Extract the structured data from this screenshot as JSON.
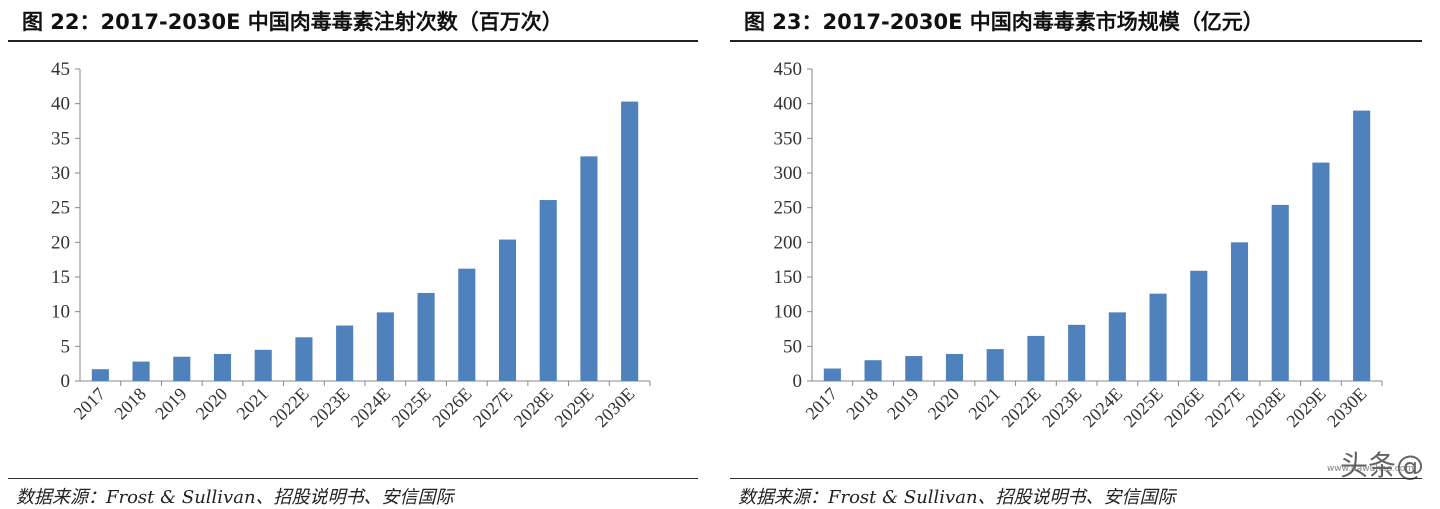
{
  "charts": [
    {
      "figure_title": "图 22：2017-2030E 中国肉毒毒素注射次数（百万次）",
      "source": "数据来源：Frost & Sullivan、招股说明书、安信国际",
      "chart_data": {
        "type": "bar",
        "title": "图 22：2017-2030E 中国肉毒毒素注射次数（百万次）",
        "categories": [
          "2017",
          "2018",
          "2019",
          "2020",
          "2021",
          "2022E",
          "2023E",
          "2024E",
          "2025E",
          "2026E",
          "2027E",
          "2028E",
          "2029E",
          "2030E"
        ],
        "values": [
          1.7,
          2.8,
          3.5,
          3.9,
          4.5,
          6.3,
          8.0,
          9.9,
          12.7,
          16.2,
          20.4,
          26.1,
          32.4,
          40.3
        ],
        "ylim": [
          0,
          45
        ],
        "yticks": [
          "0",
          "5",
          "10",
          "15",
          "20",
          "25",
          "30",
          "35",
          "40",
          "45"
        ],
        "color": "#4f81bd",
        "grid": false
      }
    },
    {
      "figure_title": "图 23：2017-2030E 中国肉毒毒素市场规模（亿元）",
      "source": "数据来源：Frost & Sullivan、招股说明书、安信国际",
      "chart_data": {
        "type": "bar",
        "title": "图 23：2017-2030E 中国肉毒毒素市场规模（亿元）",
        "categories": [
          "2017",
          "2018",
          "2019",
          "2020",
          "2021",
          "2022E",
          "2023E",
          "2024E",
          "2025E",
          "2026E",
          "2027E",
          "2028E",
          "2029E",
          "2030E"
        ],
        "values": [
          18,
          30,
          36,
          39,
          46,
          65,
          81,
          99,
          126,
          159,
          200,
          254,
          315,
          390
        ],
        "ylim": [
          0,
          450
        ],
        "yticks": [
          "0",
          "50",
          "100",
          "150",
          "200",
          "250",
          "300",
          "350",
          "400",
          "450"
        ],
        "color": "#4f81bd",
        "grid": false
      }
    }
  ],
  "watermark": {
    "text": "头条@",
    "sub": "www.dawuhao.com"
  }
}
